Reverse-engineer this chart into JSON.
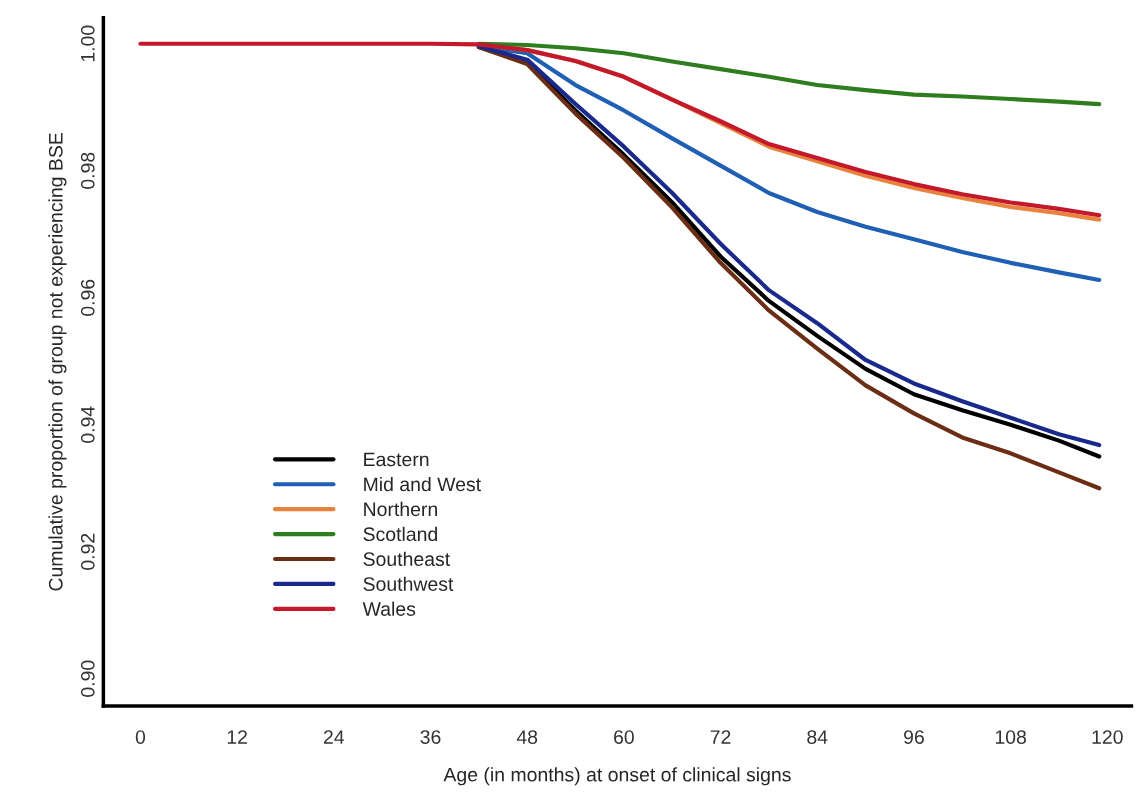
{
  "chart_data": {
    "type": "line",
    "xlabel": "Age (in months) at onset of clinical signs",
    "ylabel": "Cumulative proportion of group not experiencing BSE",
    "x": [
      0,
      12,
      24,
      36,
      42,
      48,
      54,
      60,
      66,
      72,
      78,
      84,
      90,
      96,
      102,
      108,
      114,
      119
    ],
    "series": [
      {
        "name": "Eastern",
        "color": "#000000",
        "values": [
          null,
          null,
          null,
          null,
          0.9995,
          0.997,
          0.9895,
          0.9825,
          0.975,
          0.9665,
          0.9595,
          0.954,
          0.9488,
          0.9448,
          0.9423,
          0.94,
          0.9375,
          0.935
        ]
      },
      {
        "name": "Mid and West",
        "color": "#1f5fb4",
        "values": [
          null,
          null,
          null,
          null,
          0.9997,
          0.9985,
          0.9935,
          0.9895,
          0.9851,
          0.9808,
          0.9765,
          0.9735,
          0.9712,
          0.9692,
          0.9672,
          0.9655,
          0.964,
          0.9628
        ]
      },
      {
        "name": "Northern",
        "color": "#e8823c",
        "values": [
          null,
          null,
          null,
          null,
          0.9999,
          0.999,
          0.9973,
          0.9948,
          0.9912,
          0.9875,
          0.9838,
          0.9815,
          0.9792,
          0.9773,
          0.9757,
          0.9743,
          0.9733,
          0.9723
        ]
      },
      {
        "name": "Scotland",
        "color": "#2e7d1e",
        "values": [
          null,
          null,
          null,
          null,
          1,
          0.9998,
          0.9993,
          0.9985,
          0.9972,
          0.996,
          0.9948,
          0.9935,
          0.9927,
          0.992,
          0.9917,
          0.9913,
          0.9909,
          0.9905
        ]
      },
      {
        "name": "Southeast",
        "color": "#6b2e14",
        "values": [
          null,
          null,
          null,
          null,
          0.9995,
          0.9968,
          0.989,
          0.982,
          0.9742,
          0.9655,
          0.958,
          0.952,
          0.9462,
          0.9418,
          0.938,
          0.9355,
          0.9325,
          0.93
        ]
      },
      {
        "name": "Southwest",
        "color": "#1a2a8c",
        "values": [
          null,
          null,
          null,
          null,
          0.9996,
          0.9975,
          0.9905,
          0.9838,
          0.9765,
          0.9685,
          0.9612,
          0.956,
          0.9502,
          0.9465,
          0.9437,
          0.9411,
          0.9385,
          0.9368
        ]
      },
      {
        "name": "Wales",
        "color": "#c4182b",
        "values": [
          1,
          1,
          1,
          1,
          0.9999,
          0.999,
          0.9973,
          0.9948,
          0.9912,
          0.9878,
          0.9842,
          0.982,
          0.9798,
          0.9779,
          0.9763,
          0.975,
          0.974,
          0.973
        ]
      }
    ],
    "xlim": [
      -4.6,
      123
    ],
    "xticks": [
      0,
      12,
      24,
      36,
      48,
      60,
      72,
      84,
      96,
      108,
      120
    ],
    "ylim": [
      0.8957,
      1.0041
    ],
    "yticks": [
      {
        "value": 0.9,
        "label": "0.90"
      },
      {
        "value": 0.92,
        "label": "0.92"
      },
      {
        "value": 0.94,
        "label": "0.94"
      },
      {
        "value": 0.96,
        "label": "0.96"
      },
      {
        "value": 0.98,
        "label": "0.98"
      },
      {
        "value": 1.0,
        "label": "1.00"
      }
    ],
    "grid": false,
    "legend": "bottom left"
  }
}
